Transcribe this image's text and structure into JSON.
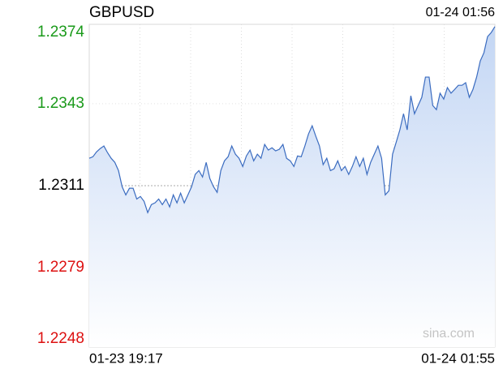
{
  "chart_data": {
    "type": "line",
    "title": "GBPUSD",
    "timestamp": "01-24 01:56",
    "watermark": "sina.com",
    "x_labels": [
      "01-23 19:17",
      "01-24 01:55"
    ],
    "color": "#3b6cc0",
    "ylim": [
      1.2248,
      1.2374
    ],
    "yticks": [
      1.2374,
      1.2343,
      1.2311,
      1.2279,
      1.2248
    ],
    "ytick_colors": [
      "#1a9a1a",
      "#1a9a1a",
      "#000000",
      "#dd1111",
      "#dd1111"
    ],
    "grid": true,
    "values": [
      1.23217,
      1.23223,
      1.23242,
      1.23255,
      1.23265,
      1.23239,
      1.23217,
      1.23201,
      1.23169,
      1.23106,
      1.23074,
      1.231,
      1.231,
      1.23058,
      1.23068,
      1.23049,
      1.23005,
      1.23036,
      1.23043,
      1.23058,
      1.23036,
      1.23058,
      1.23027,
      1.23074,
      1.23043,
      1.23081,
      1.23043,
      1.23074,
      1.23106,
      1.23154,
      1.23169,
      1.23144,
      1.23201,
      1.23138,
      1.23106,
      1.23084,
      1.23169,
      1.23207,
      1.23223,
      1.23265,
      1.23233,
      1.23217,
      1.23185,
      1.23226,
      1.23249,
      1.23207,
      1.23233,
      1.23217,
      1.23271,
      1.23249,
      1.23258,
      1.23246,
      1.23252,
      1.23271,
      1.23217,
      1.23207,
      1.23185,
      1.23226,
      1.23223,
      1.23265,
      1.23312,
      1.23344,
      1.23303,
      1.23265,
      1.23192,
      1.23217,
      1.23169,
      1.23176,
      1.23207,
      1.23169,
      1.23185,
      1.23154,
      1.23185,
      1.23223,
      1.23185,
      1.23217,
      1.23154,
      1.23201,
      1.23233,
      1.23265,
      1.23217,
      1.23074,
      1.2309,
      1.23233,
      1.2328,
      1.23328,
      1.23391,
      1.23328,
      1.23461,
      1.23391,
      1.23423,
      1.23455,
      1.23534,
      1.23534,
      1.23423,
      1.23407,
      1.23471,
      1.23448,
      1.23493,
      1.23471,
      1.23486,
      1.23502,
      1.23502,
      1.23512,
      1.23455,
      1.23486,
      1.23534,
      1.23597,
      1.23629,
      1.23692,
      1.23708,
      1.23731
    ]
  }
}
